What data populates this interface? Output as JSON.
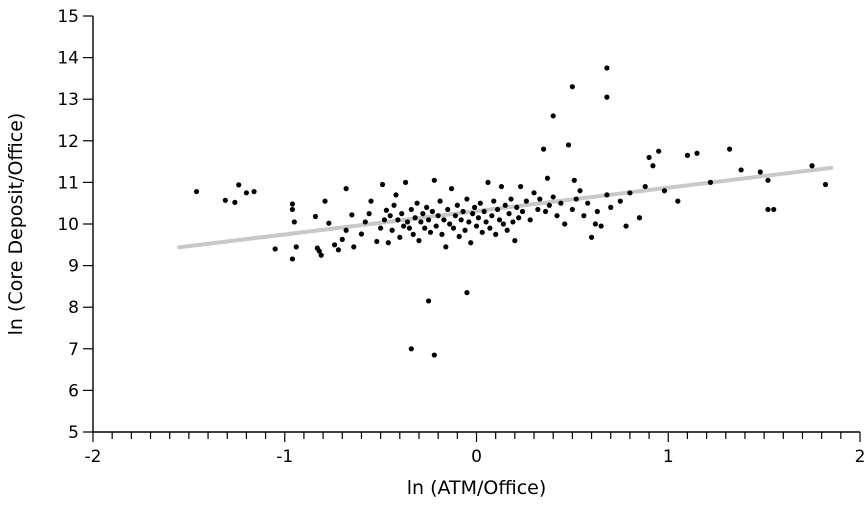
{
  "chart_data": {
    "type": "scatter",
    "title": "",
    "xlabel": "ln (ATM/Office)",
    "ylabel": "ln (Core Deposit/Office)",
    "xlim": [
      -2,
      2
    ],
    "ylim": [
      5,
      15
    ],
    "xticks": [
      -2,
      -1,
      0,
      1,
      2
    ],
    "xtick_labels": [
      "-2",
      "-1",
      "0",
      "1",
      "2"
    ],
    "yticks": [
      5,
      6,
      7,
      8,
      9,
      10,
      11,
      12,
      13,
      14,
      15
    ],
    "ytick_labels": [
      "5",
      "6",
      "7",
      "8",
      "9",
      "10",
      "11",
      "12",
      "13",
      "14",
      "15"
    ],
    "grid": false,
    "legend": "none",
    "point_color": "#000000",
    "fit_line_color": "#c8c8c8",
    "series": [
      {
        "kind": "points",
        "points": [
          [
            -1.46,
            10.78
          ],
          [
            -1.31,
            10.57
          ],
          [
            -1.24,
            10.94
          ],
          [
            -1.2,
            10.75
          ],
          [
            -1.16,
            10.78
          ],
          [
            -1.26,
            10.52
          ],
          [
            -1.05,
            9.4
          ],
          [
            -0.96,
            10.48
          ],
          [
            -0.96,
            10.35
          ],
          [
            -0.95,
            10.05
          ],
          [
            -0.94,
            9.45
          ],
          [
            -0.96,
            9.16
          ],
          [
            -0.84,
            10.18
          ],
          [
            -0.83,
            9.42
          ],
          [
            -0.82,
            9.35
          ],
          [
            -0.81,
            9.25
          ],
          [
            -0.79,
            10.55
          ],
          [
            -0.77,
            10.02
          ],
          [
            -0.74,
            9.5
          ],
          [
            -0.72,
            9.38
          ],
          [
            -0.7,
            9.63
          ],
          [
            -0.68,
            9.85
          ],
          [
            -0.68,
            10.85
          ],
          [
            -0.65,
            10.22
          ],
          [
            -0.64,
            9.45
          ],
          [
            -0.6,
            9.76
          ],
          [
            -0.58,
            10.05
          ],
          [
            -0.56,
            10.25
          ],
          [
            -0.55,
            10.55
          ],
          [
            -0.52,
            9.58
          ],
          [
            -0.5,
            9.9
          ],
          [
            -0.49,
            10.95
          ],
          [
            -0.48,
            10.1
          ],
          [
            -0.47,
            10.33
          ],
          [
            -0.46,
            9.55
          ],
          [
            -0.45,
            10.2
          ],
          [
            -0.44,
            9.85
          ],
          [
            -0.43,
            10.45
          ],
          [
            -0.42,
            10.7
          ],
          [
            -0.41,
            10.1
          ],
          [
            -0.4,
            9.68
          ],
          [
            -0.39,
            10.25
          ],
          [
            -0.38,
            9.95
          ],
          [
            -0.37,
            11.0
          ],
          [
            -0.36,
            10.05
          ],
          [
            -0.35,
            9.9
          ],
          [
            -0.34,
            10.35
          ],
          [
            -0.33,
            9.75
          ],
          [
            -0.32,
            10.15
          ],
          [
            -0.31,
            10.5
          ],
          [
            -0.3,
            9.6
          ],
          [
            -0.29,
            10.05
          ],
          [
            -0.28,
            10.25
          ],
          [
            -0.27,
            9.9
          ],
          [
            -0.26,
            10.4
          ],
          [
            -0.25,
            10.1
          ],
          [
            -0.24,
            9.8
          ],
          [
            -0.23,
            10.3
          ],
          [
            -0.22,
            11.05
          ],
          [
            -0.21,
            9.95
          ],
          [
            -0.2,
            10.2
          ],
          [
            -0.19,
            10.55
          ],
          [
            -0.18,
            9.75
          ],
          [
            -0.17,
            10.1
          ],
          [
            -0.16,
            9.45
          ],
          [
            -0.15,
            10.35
          ],
          [
            -0.14,
            10.0
          ],
          [
            -0.13,
            10.85
          ],
          [
            -0.12,
            9.9
          ],
          [
            -0.11,
            10.2
          ],
          [
            -0.1,
            10.45
          ],
          [
            -0.09,
            9.7
          ],
          [
            -0.08,
            10.1
          ],
          [
            -0.07,
            10.3
          ],
          [
            -0.06,
            9.85
          ],
          [
            -0.05,
            10.6
          ],
          [
            -0.04,
            10.05
          ],
          [
            -0.03,
            9.55
          ],
          [
            -0.02,
            10.25
          ],
          [
            -0.01,
            10.4
          ],
          [
            0.0,
            9.95
          ],
          [
            0.01,
            10.15
          ],
          [
            0.02,
            10.5
          ],
          [
            0.03,
            9.8
          ],
          [
            0.04,
            10.3
          ],
          [
            0.05,
            10.05
          ],
          [
            0.06,
            11.0
          ],
          [
            0.07,
            9.9
          ],
          [
            0.08,
            10.2
          ],
          [
            0.09,
            10.55
          ],
          [
            0.1,
            9.75
          ],
          [
            0.11,
            10.35
          ],
          [
            0.12,
            10.1
          ],
          [
            0.13,
            10.9
          ],
          [
            0.14,
            10.0
          ],
          [
            0.15,
            10.45
          ],
          [
            0.16,
            9.85
          ],
          [
            0.17,
            10.25
          ],
          [
            0.18,
            10.6
          ],
          [
            0.19,
            10.05
          ],
          [
            0.2,
            9.6
          ],
          [
            0.21,
            10.4
          ],
          [
            0.22,
            10.15
          ],
          [
            0.23,
            10.9
          ],
          [
            0.24,
            10.3
          ],
          [
            0.26,
            10.55
          ],
          [
            0.28,
            10.1
          ],
          [
            0.3,
            10.75
          ],
          [
            0.32,
            10.35
          ],
          [
            0.33,
            10.6
          ],
          [
            0.35,
            11.8
          ],
          [
            0.36,
            10.3
          ],
          [
            0.37,
            11.1
          ],
          [
            0.38,
            10.45
          ],
          [
            0.4,
            10.65
          ],
          [
            0.42,
            10.2
          ],
          [
            0.44,
            10.5
          ],
          [
            0.46,
            10.0
          ],
          [
            0.48,
            11.9
          ],
          [
            0.5,
            10.35
          ],
          [
            0.51,
            11.05
          ],
          [
            0.52,
            10.6
          ],
          [
            0.54,
            10.8
          ],
          [
            0.56,
            10.2
          ],
          [
            0.58,
            10.5
          ],
          [
            0.6,
            9.68
          ],
          [
            0.62,
            10.0
          ],
          [
            0.63,
            10.3
          ],
          [
            0.65,
            9.95
          ],
          [
            0.68,
            10.7
          ],
          [
            0.7,
            10.4
          ],
          [
            0.75,
            10.55
          ],
          [
            0.78,
            9.95
          ],
          [
            0.8,
            10.75
          ],
          [
            0.85,
            10.15
          ],
          [
            0.88,
            10.9
          ],
          [
            0.9,
            11.6
          ],
          [
            0.92,
            11.4
          ],
          [
            0.95,
            11.75
          ],
          [
            0.98,
            10.8
          ],
          [
            1.05,
            10.55
          ],
          [
            1.1,
            11.65
          ],
          [
            1.15,
            11.7
          ],
          [
            1.22,
            11.0
          ],
          [
            1.32,
            11.8
          ],
          [
            1.38,
            11.3
          ],
          [
            1.48,
            11.25
          ],
          [
            1.52,
            11.05
          ],
          [
            1.52,
            10.35
          ],
          [
            1.55,
            10.35
          ],
          [
            1.75,
            11.4
          ],
          [
            1.82,
            10.95
          ],
          [
            0.4,
            12.6
          ],
          [
            0.5,
            13.3
          ],
          [
            0.68,
            13.05
          ],
          [
            0.68,
            13.75
          ],
          [
            -0.25,
            8.15
          ],
          [
            -0.05,
            8.35
          ],
          [
            -0.34,
            7.0
          ],
          [
            -0.22,
            6.85
          ]
        ]
      },
      {
        "kind": "fit-line",
        "x": [
          -1.55,
          1.85
        ],
        "y": [
          9.44,
          11.35
        ]
      }
    ]
  }
}
